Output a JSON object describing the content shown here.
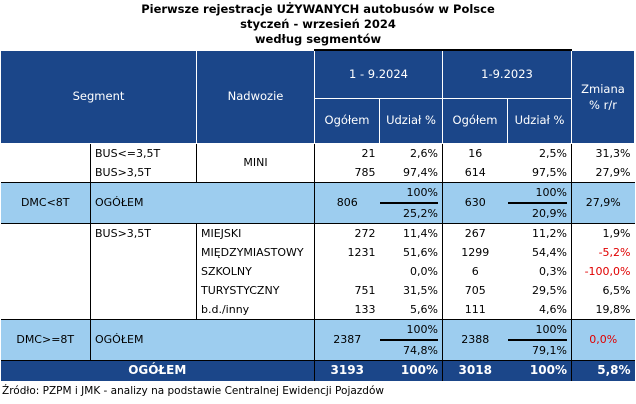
{
  "title": {
    "line1": "Pierwsze rejestracje UŻYWANYCH autobusów w Polsce",
    "line2": "styczeń - wrzesień 2024",
    "line3": "według segmentów"
  },
  "header": {
    "segment": "Segment",
    "nadwozie": "Nadwozie",
    "period_2024": "1 - 9.2024",
    "period_2023": "1-9.2023",
    "change": "Zmiana % r/r",
    "total": "Ogółem",
    "share": "Udział %"
  },
  "rows": [
    {
      "sub": "BUS<=3,5T",
      "body": "MINI",
      "t24": "21",
      "s24": "2,6%",
      "t23": "16",
      "s23": "2,5%",
      "chg": "31,3%"
    },
    {
      "sub": "BUS>3,5T",
      "t24": "785",
      "s24": "97,4%",
      "t23": "614",
      "s23": "97,5%",
      "chg": "27,9%"
    },
    {
      "sub": "BUS>3,5T",
      "body": "MIEJSKI",
      "t24": "272",
      "s24": "11,4%",
      "t23": "267",
      "s23": "11,2%",
      "chg": "1,9%"
    },
    {
      "body": "MIĘDZYMIASTOWY",
      "t24": "1231",
      "s24": "51,6%",
      "t23": "1299",
      "s23": "54,4%",
      "chg": "-5,2%"
    },
    {
      "body": "SZKOLNY",
      "t24": "",
      "s24": "0,0%",
      "t23": "6",
      "s23": "0,3%",
      "chg": "-100,0%"
    },
    {
      "body": "TURYSTYCZNY",
      "t24": "751",
      "s24": "31,5%",
      "t23": "705",
      "s23": "29,5%",
      "chg": "6,5%"
    },
    {
      "body": "b.d./inny",
      "t24": "133",
      "s24": "5,6%",
      "t23": "111",
      "s23": "4,6%",
      "chg": "19,8%"
    }
  ],
  "subtotals": [
    {
      "segment": "DMC<8T",
      "label": "OGÓŁEM",
      "t24": "806",
      "p24": "100%",
      "s24": "25,2%",
      "t23": "630",
      "p23": "100%",
      "s23": "20,9%",
      "chg": "27,9%"
    },
    {
      "segment": "DMC>=8T",
      "label": "OGÓŁEM",
      "t24": "2387",
      "p24": "100%",
      "s24": "74,8%",
      "t23": "2388",
      "p23": "100%",
      "s23": "79,1%",
      "chg": "0,0%"
    }
  ],
  "total": {
    "label": "OGÓŁEM",
    "t24": "3193",
    "s24": "100%",
    "t23": "3018",
    "s23": "100%",
    "chg": "5,8%"
  },
  "source": "Źródło: PZPM i JMK - analizy na podstawie Centralnej Ewidencji Pojazdów",
  "colors": {
    "header": "#1b4689",
    "subtotal": "#9dcdef",
    "negative": "#e00000"
  }
}
